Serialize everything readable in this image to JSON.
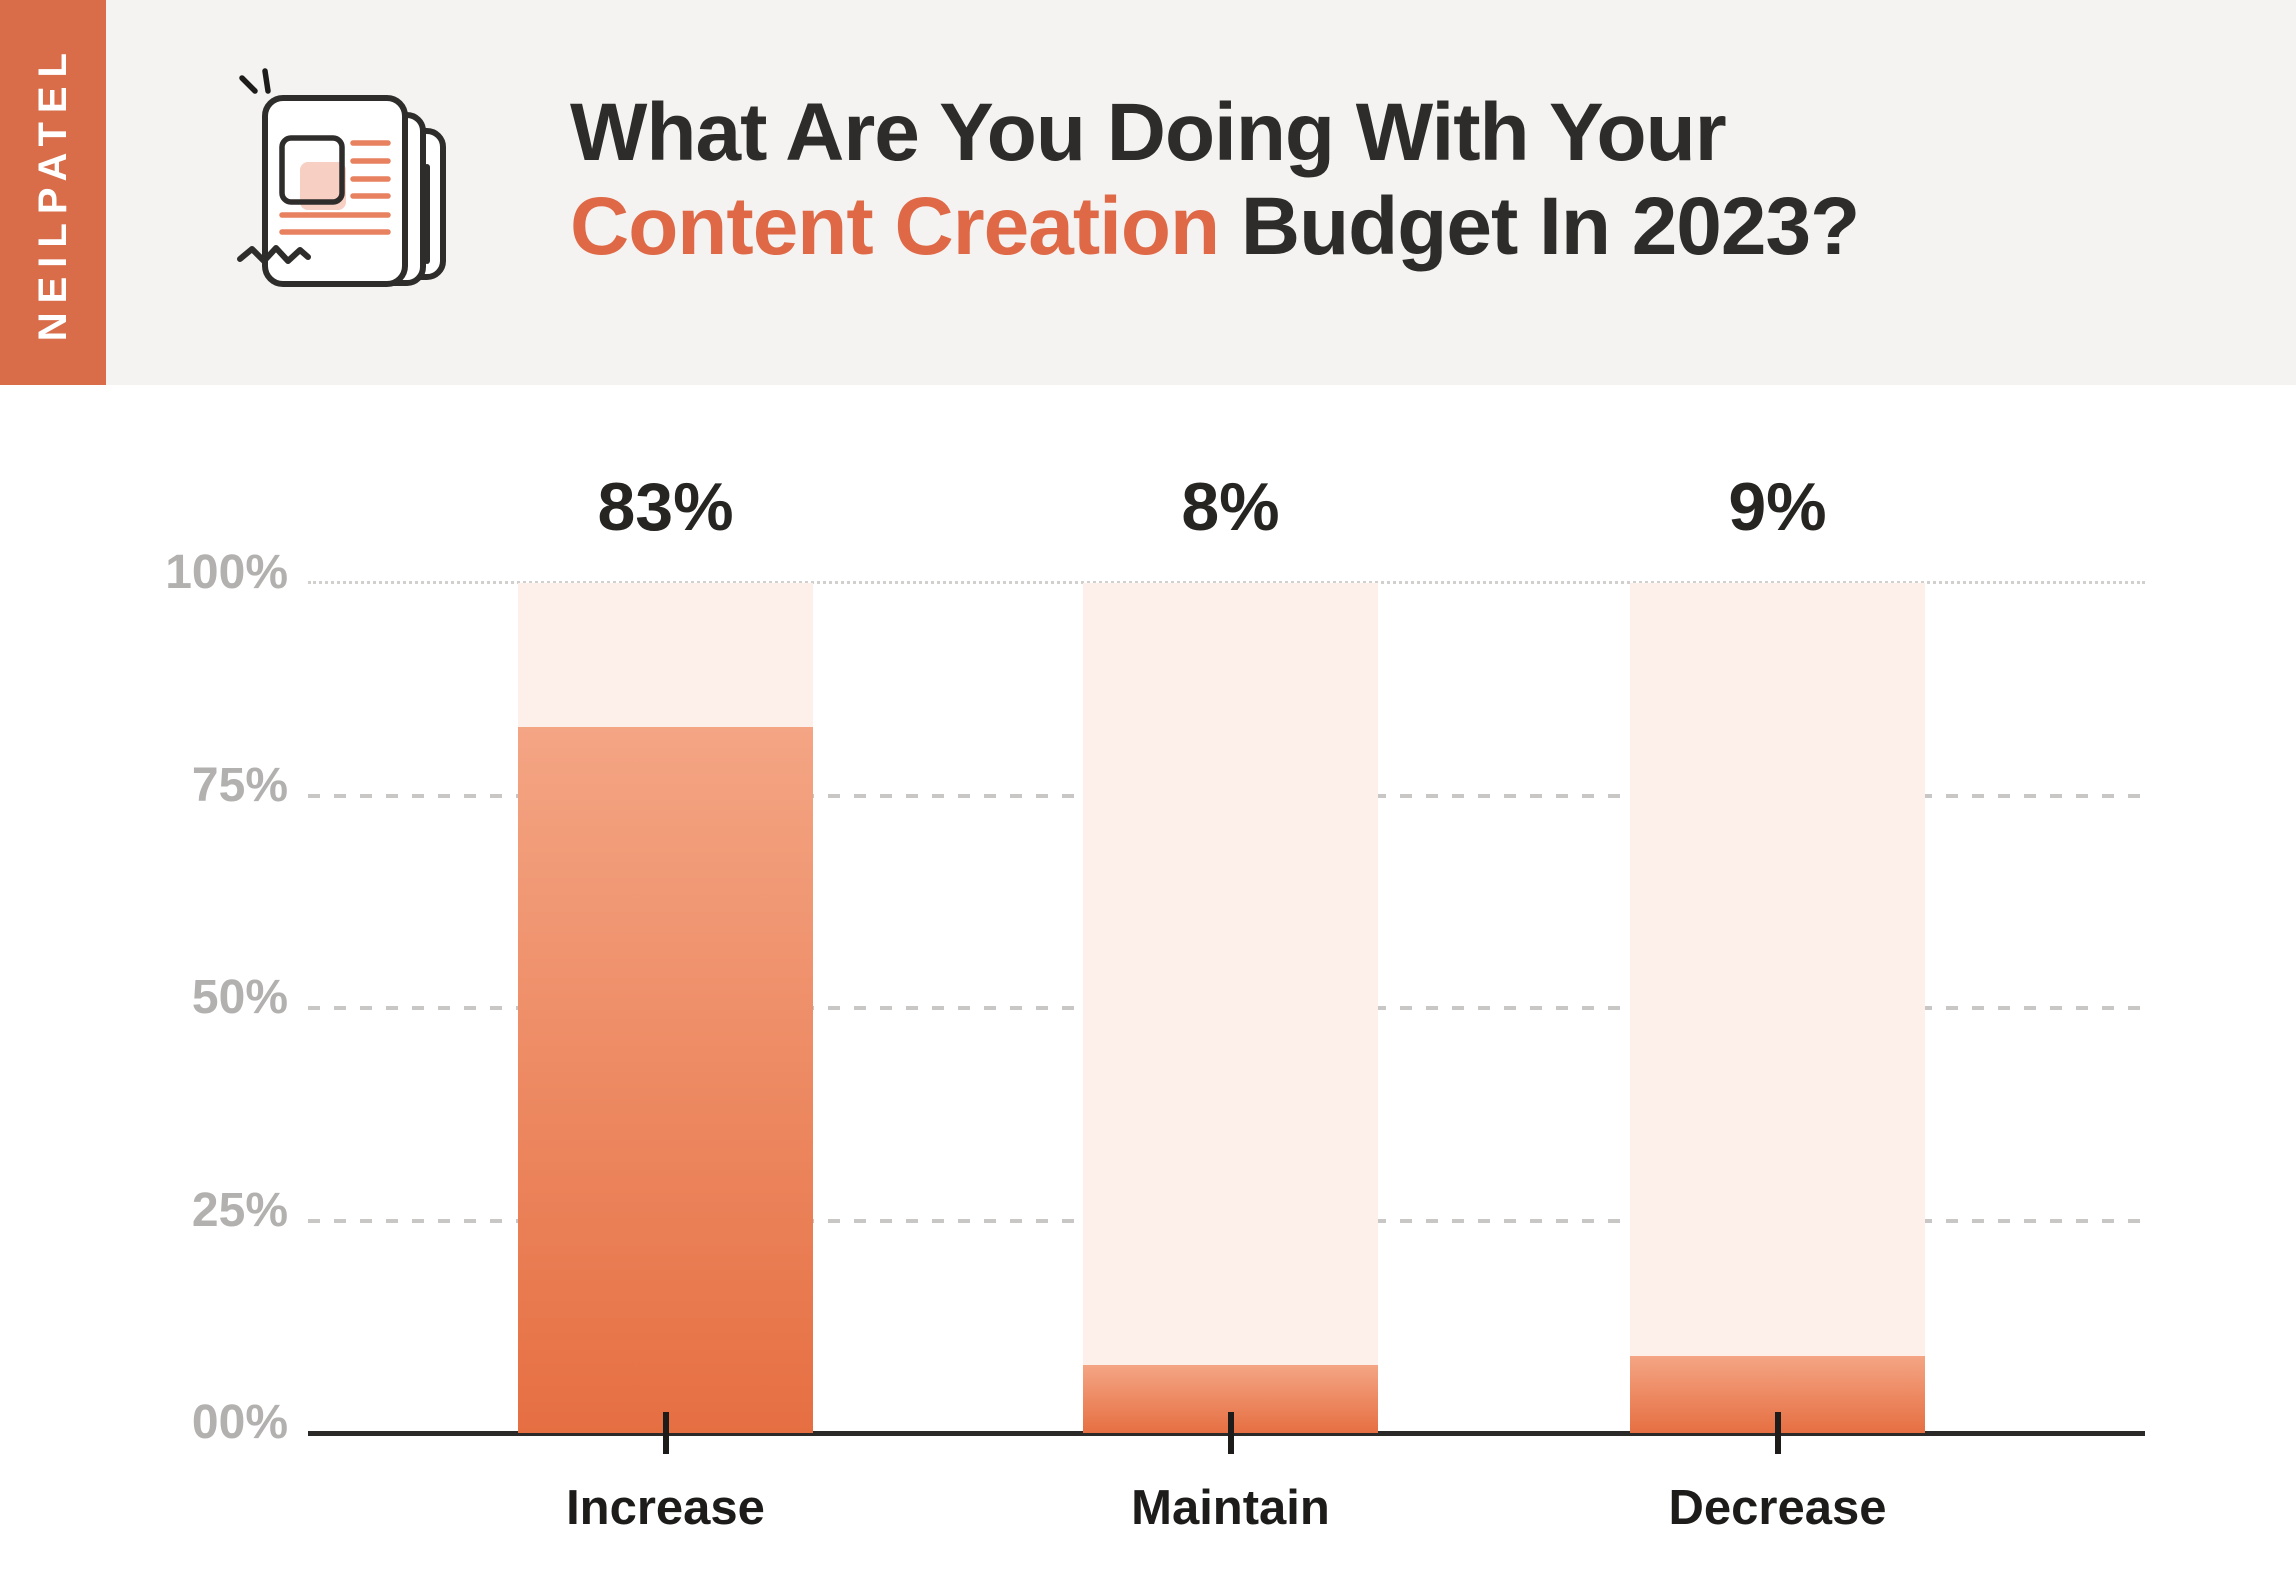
{
  "brand": {
    "name": "NEILPATEL",
    "strip_color": "#d96c49"
  },
  "header": {
    "title_line1": "What Are You Doing With Your",
    "title_highlight": "Content Creation",
    "title_rest": " Budget In 2023?",
    "highlight_color": "#df6947",
    "text_color": "#2d2c2a",
    "background_color": "#f4f3f1"
  },
  "icon": {
    "name": "newspaper-icon",
    "outline_color": "#2e2d2b",
    "accent_line_color": "#e8815f",
    "accent_fill_color": "#f7cfc3"
  },
  "chart_data": {
    "type": "bar",
    "title": "What Are You Doing With Your Content Creation Budget In 2023?",
    "categories": [
      "Increase",
      "Maintain",
      "Decrease"
    ],
    "values": [
      83,
      8,
      9
    ],
    "value_labels": [
      "83%",
      "8%",
      "9%"
    ],
    "y_ticks": [
      {
        "label": "100%",
        "value": 100,
        "grid": "dotted"
      },
      {
        "label": "75%",
        "value": 75,
        "grid": "dashed"
      },
      {
        "label": "50%",
        "value": 50,
        "grid": "dashed"
      },
      {
        "label": "25%",
        "value": 25,
        "grid": "dashed"
      },
      {
        "label": "00%",
        "value": 0,
        "grid": "axis"
      }
    ],
    "ylim": [
      0,
      100
    ],
    "xlabel": "",
    "ylabel": "",
    "legend": "none",
    "grid": "horizontal dashed at 25/50/75, dotted at 100, solid dark baseline at 0",
    "bar_track_color": "#fdf0ea",
    "bar_fill_top_color": "#f4a584",
    "bar_fill_bottom_color": "#e66f42",
    "axis_color": "#2b2a28",
    "tick_label_color": "#b3b1af"
  }
}
